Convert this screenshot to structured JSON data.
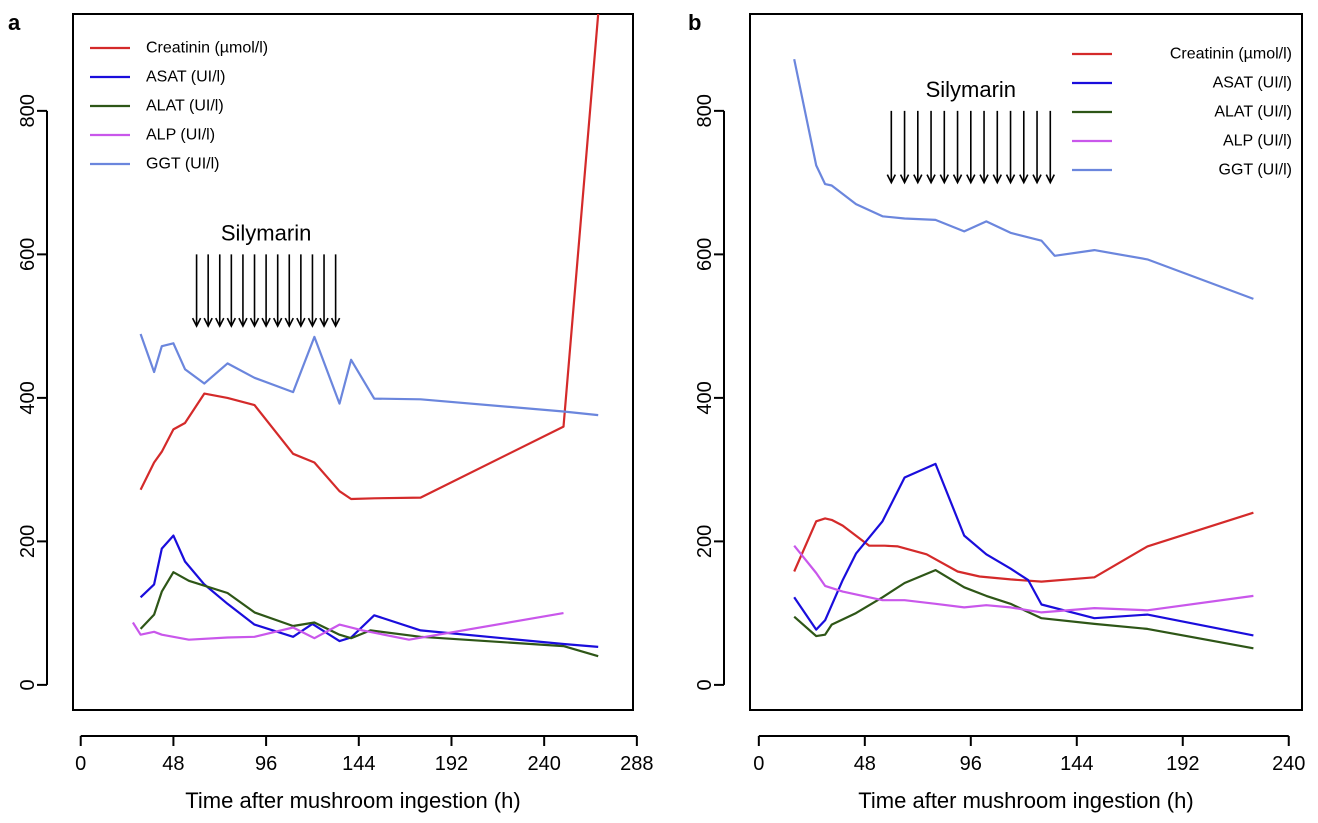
{
  "chart_data": [
    {
      "type": "line",
      "panel_label": "a",
      "xlabel": "Time after mushroom ingestion (h)",
      "ylabel": "",
      "xlim": [
        -4,
        286
      ],
      "ylim": [
        -35,
        935
      ],
      "xticks": [
        0,
        48,
        96,
        144,
        192,
        240,
        288
      ],
      "yticks": [
        0,
        200,
        400,
        600,
        800
      ],
      "legend_position": "top-left",
      "grid": false,
      "annotation": {
        "text": "Silymarin",
        "arrows_from": 60,
        "arrows_to": 132,
        "arrow_count": 13,
        "arrow_top_value": 600,
        "arrow_bottom_value": 500
      },
      "series": [
        {
          "name": "Creatinin (µmol/l)",
          "color": "#d42a2a",
          "x": [
            31,
            38,
            42,
            48,
            54,
            64,
            76,
            90,
            110,
            121,
            134,
            140,
            152,
            176,
            250,
            268
          ],
          "y": [
            272,
            310,
            325,
            356,
            365,
            406,
            400,
            390,
            322,
            310,
            270,
            259,
            260,
            261,
            360,
            935
          ]
        },
        {
          "name": "ASAT (UI/l)",
          "color": "#1a0ddc",
          "x": [
            31,
            38,
            42,
            48,
            54,
            64,
            76,
            90,
            110,
            120,
            134,
            140,
            152,
            176,
            250,
            268
          ],
          "y": [
            122,
            140,
            190,
            208,
            172,
            140,
            113,
            84,
            67,
            85,
            61,
            66,
            97,
            76,
            57,
            53
          ]
        },
        {
          "name": "ALAT (UI/l)",
          "color": "#2e5617",
          "x": [
            31,
            38,
            42,
            48,
            56,
            76,
            90,
            110,
            121,
            134,
            140,
            150,
            176,
            250,
            268
          ],
          "y": [
            78,
            98,
            130,
            157,
            145,
            128,
            101,
            82,
            87,
            70,
            65,
            76,
            67,
            54,
            40
          ]
        },
        {
          "name": "ALP (UI/l)",
          "color": "#c957eb",
          "x": [
            27,
            31,
            38,
            42,
            56,
            76,
            90,
            110,
            121,
            134,
            146,
            170,
            250
          ],
          "y": [
            87,
            70,
            74,
            70,
            63,
            66,
            67,
            80,
            65,
            84,
            76,
            63,
            100
          ]
        },
        {
          "name": "GGT (UI/l)",
          "color": "#6b86dd",
          "x": [
            31,
            38,
            42,
            48,
            54,
            64,
            76,
            90,
            110,
            121,
            134,
            140,
            152,
            176,
            250,
            268
          ],
          "y": [
            489,
            436,
            472,
            476,
            440,
            420,
            448,
            428,
            408,
            485,
            392,
            453,
            399,
            398,
            381,
            376
          ]
        }
      ]
    },
    {
      "type": "line",
      "panel_label": "b",
      "xlabel": "Time after mushroom ingestion (h)",
      "ylabel": "",
      "xlim": [
        -4,
        246
      ],
      "ylim": [
        -35,
        935
      ],
      "xticks": [
        0,
        48,
        96,
        144,
        192,
        240
      ],
      "yticks": [
        0,
        200,
        400,
        600,
        800
      ],
      "legend_position": "top-right",
      "grid": false,
      "annotation": {
        "text": "Silymarin",
        "arrows_from": 60,
        "arrows_to": 132,
        "arrow_count": 13,
        "arrow_top_value": 800,
        "arrow_bottom_value": 700
      },
      "series": [
        {
          "name": "Creatinin (µmol/l)",
          "color": "#d42a2a",
          "x": [
            16,
            26,
            30,
            33,
            38,
            50,
            57,
            63,
            76,
            90,
            100,
            114,
            128,
            152,
            176,
            224
          ],
          "y": [
            158,
            228,
            232,
            230,
            222,
            194,
            194,
            193,
            182,
            158,
            151,
            147,
            144,
            150,
            193,
            240
          ]
        },
        {
          "name": "ASAT (UI/l)",
          "color": "#1a0ddc",
          "x": [
            16,
            26,
            30,
            38,
            44,
            56,
            66,
            80,
            93,
            103,
            114,
            122,
            128,
            152,
            176,
            224
          ],
          "y": [
            122,
            77,
            90,
            146,
            183,
            228,
            289,
            308,
            208,
            182,
            162,
            146,
            112,
            93,
            98,
            69
          ]
        },
        {
          "name": "ALAT (UI/l)",
          "color": "#2e5617",
          "x": [
            16,
            26,
            30,
            33,
            44,
            56,
            66,
            80,
            93,
            103,
            114,
            128,
            152,
            176,
            224
          ],
          "y": [
            95,
            68,
            70,
            84,
            100,
            122,
            142,
            160,
            136,
            124,
            113,
            93,
            85,
            78,
            51
          ]
        },
        {
          "name": "ALP (UI/l)",
          "color": "#c957eb",
          "x": [
            16,
            26,
            30,
            38,
            56,
            66,
            80,
            93,
            103,
            114,
            128,
            152,
            176,
            224
          ],
          "y": [
            194,
            156,
            138,
            130,
            118,
            118,
            113,
            108,
            111,
            108,
            101,
            107,
            104,
            124
          ]
        },
        {
          "name": "GGT (UI/l)",
          "color": "#6b86dd",
          "x": [
            16,
            26,
            30,
            33,
            44,
            56,
            66,
            80,
            93,
            103,
            114,
            128,
            134,
            152,
            176,
            224
          ],
          "y": [
            872,
            724,
            698,
            696,
            670,
            653,
            650,
            648,
            632,
            646,
            630,
            619,
            598,
            606,
            593,
            538
          ]
        }
      ]
    }
  ]
}
